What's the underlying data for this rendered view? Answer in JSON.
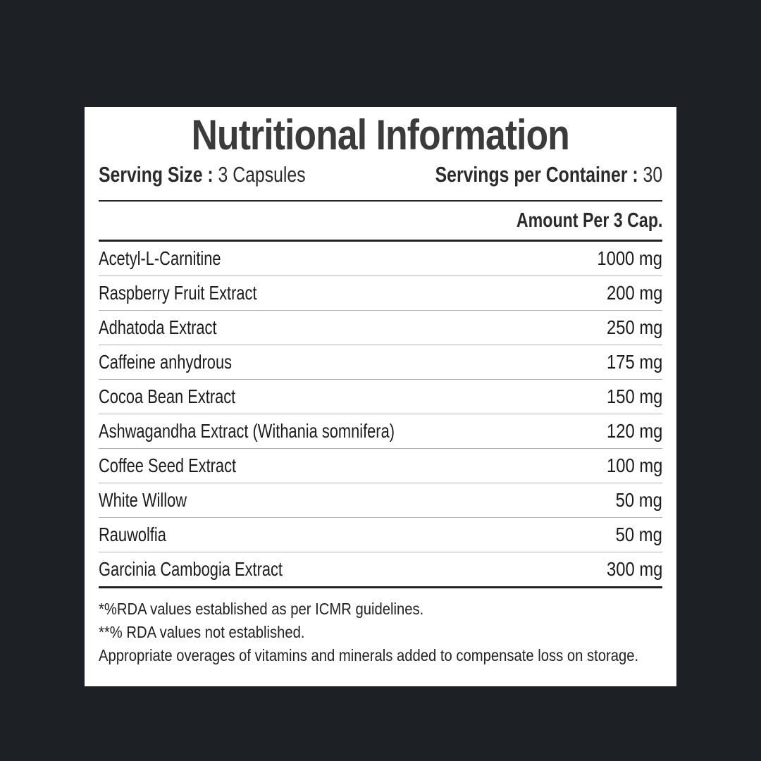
{
  "colors": {
    "background": "#1d2125",
    "panel": "#ffffff",
    "title_text": "#3b3b3b",
    "body_text": "#1c1c1c",
    "rule": "#222222",
    "row_separator": "#b3b3b3"
  },
  "panel": {
    "title": "Nutritional Information",
    "serving_size_label": "Serving Size :",
    "serving_size_value": "3 Capsules",
    "servings_per_container_label": "Servings per Container :",
    "servings_per_container_value": "30",
    "amount_header": "Amount Per 3 Cap.",
    "rows": [
      {
        "name": "Acetyl-L-Carnitine",
        "amount": "1000 mg"
      },
      {
        "name": "Raspberry Fruit Extract",
        "amount": "200 mg"
      },
      {
        "name": "Adhatoda Extract",
        "amount": "250 mg"
      },
      {
        "name": "Caffeine anhydrous",
        "amount": "175 mg"
      },
      {
        "name": "Cocoa Bean Extract",
        "amount": "150 mg"
      },
      {
        "name": "Ashwagandha Extract (Withania somnifera)",
        "amount": "120 mg"
      },
      {
        "name": "Coffee Seed Extract",
        "amount": "100 mg"
      },
      {
        "name": "White Willow",
        "amount": "50 mg"
      },
      {
        "name": "Rauwolfia",
        "amount": "50 mg"
      },
      {
        "name": "Garcinia Cambogia Extract",
        "amount": "300 mg"
      }
    ],
    "footnotes": [
      "*%RDA values established as per ICMR guidelines.",
      "**% RDA values not established.",
      "Appropriate overages of vitamins and minerals added to compensate loss on storage."
    ]
  }
}
